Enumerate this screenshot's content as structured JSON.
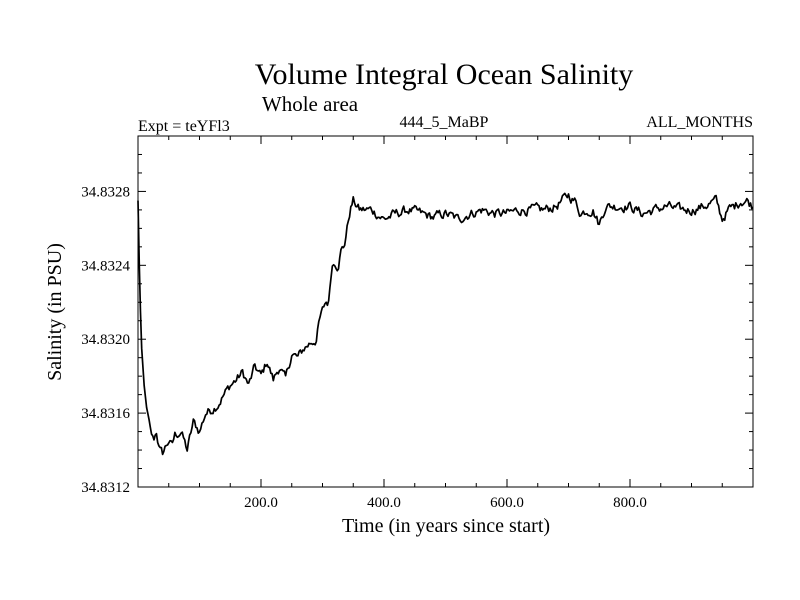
{
  "chart_data": {
    "type": "line",
    "title": "Volume Integral Ocean Salinity",
    "subtitle": "Whole area",
    "header_left": "Expt = teYFl3",
    "header_center": "444_5_MaBP",
    "header_right": "ALL_MONTHS",
    "xlabel": "Time (in years since start)",
    "ylabel": "Salinity (in PSU)",
    "xlim": [
      0,
      1000
    ],
    "ylim": [
      34.8312,
      34.8331
    ],
    "x_ticks": [
      200,
      400,
      600,
      800
    ],
    "x_tick_labels": [
      "200.0",
      "400.0",
      "600.0",
      "800.0"
    ],
    "y_ticks": [
      34.8312,
      34.8316,
      34.832,
      34.8324,
      34.8328
    ],
    "y_tick_labels": [
      "34.8312",
      "34.8316",
      "34.8320",
      "34.8324",
      "34.8328"
    ],
    "grid": false,
    "series": [
      {
        "name": "Salinity",
        "x": [
          0,
          3,
          6,
          10,
          15,
          20,
          25,
          30,
          35,
          40,
          45,
          50,
          55,
          60,
          70,
          80,
          90,
          100,
          110,
          120,
          130,
          140,
          150,
          160,
          170,
          180,
          190,
          200,
          210,
          220,
          230,
          240,
          250,
          260,
          270,
          280,
          290,
          295,
          300,
          305,
          310,
          315,
          320,
          325,
          330,
          335,
          340,
          345,
          350,
          360,
          380,
          400,
          420,
          440,
          460,
          480,
          500,
          520,
          540,
          560,
          580,
          600,
          620,
          640,
          660,
          680,
          690,
          700,
          710,
          720,
          730,
          740,
          750,
          760,
          780,
          800,
          820,
          840,
          860,
          880,
          900,
          920,
          940,
          950,
          960,
          970,
          980,
          990,
          1000
        ],
        "values": [
          34.83275,
          34.83225,
          34.83195,
          34.83175,
          34.8316,
          34.8315,
          34.83145,
          34.8315,
          34.8314,
          34.83138,
          34.83142,
          34.83145,
          34.83142,
          34.83148,
          34.8315,
          34.8314,
          34.83155,
          34.8315,
          34.8316,
          34.83162,
          34.83165,
          34.8317,
          34.83175,
          34.83178,
          34.83182,
          34.83175,
          34.83185,
          34.8318,
          34.83188,
          34.83178,
          34.83185,
          34.83178,
          34.83192,
          34.8319,
          34.83195,
          34.83198,
          34.832,
          34.8321,
          34.83215,
          34.8322,
          34.8322,
          34.8324,
          34.83242,
          34.8324,
          34.83248,
          34.8325,
          34.8326,
          34.8327,
          34.83275,
          34.8327,
          34.8327,
          34.83265,
          34.83268,
          34.8327,
          34.83268,
          34.83266,
          34.83268,
          34.83265,
          34.83268,
          34.8327,
          34.83268,
          34.83268,
          34.8327,
          34.8327,
          34.8327,
          34.83272,
          34.83275,
          34.83278,
          34.83275,
          34.83268,
          34.8327,
          34.8327,
          34.83262,
          34.83272,
          34.83272,
          34.83272,
          34.83268,
          34.8327,
          34.83272,
          34.8327,
          34.8327,
          34.83272,
          34.83275,
          34.83265,
          34.8327,
          34.83272,
          34.83275,
          34.83275,
          34.83272
        ]
      }
    ]
  }
}
